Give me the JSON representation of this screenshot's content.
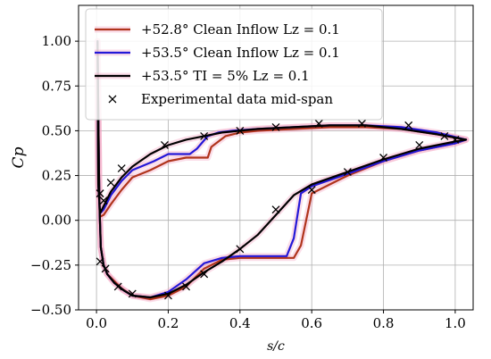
{
  "chart_data": {
    "type": "line",
    "xlabel": "s/c",
    "ylabel": "Cp",
    "xlim": [
      -0.05,
      1.05
    ],
    "ylim": [
      -0.5,
      1.2
    ],
    "xticks": [
      0.0,
      0.2,
      0.4,
      0.6,
      0.8,
      1.0
    ],
    "yticks": [
      -0.5,
      -0.25,
      0.0,
      0.25,
      0.5,
      0.75,
      1.0
    ],
    "xtick_labels": [
      "0.0",
      "0.2",
      "0.4",
      "0.6",
      "0.8",
      "1.0"
    ],
    "ytick_labels": [
      "−0.50",
      "−0.25",
      "0.00",
      "0.25",
      "0.50",
      "0.75",
      "1.00"
    ],
    "grid": true,
    "legend_position": "upper-left",
    "series": [
      {
        "name": "+52.8° Clean Inflow Lz = 0.1",
        "color": "#b0341c",
        "halo": "#f4a0c0",
        "points": [
          [
            1.03,
            0.45
          ],
          [
            0.95,
            0.48
          ],
          [
            0.85,
            0.51
          ],
          [
            0.75,
            0.52
          ],
          [
            0.65,
            0.52
          ],
          [
            0.55,
            0.51
          ],
          [
            0.45,
            0.5
          ],
          [
            0.4,
            0.49
          ],
          [
            0.36,
            0.47
          ],
          [
            0.32,
            0.41
          ],
          [
            0.31,
            0.35
          ],
          [
            0.29,
            0.35
          ],
          [
            0.25,
            0.35
          ],
          [
            0.2,
            0.33
          ],
          [
            0.15,
            0.28
          ],
          [
            0.1,
            0.24
          ],
          [
            0.07,
            0.17
          ],
          [
            0.04,
            0.09
          ],
          [
            0.02,
            0.03
          ],
          [
            0.01,
            0.02
          ],
          [
            0.005,
            0.2
          ],
          [
            0.003,
            1.0
          ],
          [
            0.005,
            0.6
          ],
          [
            0.008,
            0.1
          ],
          [
            0.012,
            -0.15
          ],
          [
            0.02,
            -0.25
          ],
          [
            0.03,
            -0.3
          ],
          [
            0.045,
            -0.33
          ],
          [
            0.07,
            -0.38
          ],
          [
            0.1,
            -0.42
          ],
          [
            0.15,
            -0.44
          ],
          [
            0.2,
            -0.42
          ],
          [
            0.25,
            -0.37
          ],
          [
            0.3,
            -0.27
          ],
          [
            0.35,
            -0.22
          ],
          [
            0.4,
            -0.21
          ],
          [
            0.5,
            -0.21
          ],
          [
            0.55,
            -0.21
          ],
          [
            0.57,
            -0.14
          ],
          [
            0.6,
            0.15
          ],
          [
            0.7,
            0.25
          ],
          [
            0.8,
            0.33
          ],
          [
            0.9,
            0.39
          ],
          [
            1.0,
            0.43
          ],
          [
            1.03,
            0.45
          ]
        ]
      },
      {
        "name": "+53.5° Clean Inflow Lz = 0.1",
        "color": "#2418d8",
        "halo": "#f4a0c0",
        "points": [
          [
            1.03,
            0.45
          ],
          [
            0.95,
            0.49
          ],
          [
            0.85,
            0.52
          ],
          [
            0.75,
            0.53
          ],
          [
            0.65,
            0.53
          ],
          [
            0.55,
            0.52
          ],
          [
            0.45,
            0.51
          ],
          [
            0.38,
            0.5
          ],
          [
            0.34,
            0.49
          ],
          [
            0.31,
            0.47
          ],
          [
            0.28,
            0.4
          ],
          [
            0.26,
            0.37
          ],
          [
            0.22,
            0.37
          ],
          [
            0.2,
            0.37
          ],
          [
            0.16,
            0.33
          ],
          [
            0.1,
            0.28
          ],
          [
            0.07,
            0.22
          ],
          [
            0.04,
            0.14
          ],
          [
            0.02,
            0.06
          ],
          [
            0.01,
            0.04
          ],
          [
            0.005,
            0.2
          ],
          [
            0.003,
            1.0
          ],
          [
            0.005,
            0.6
          ],
          [
            0.008,
            0.1
          ],
          [
            0.012,
            -0.15
          ],
          [
            0.02,
            -0.25
          ],
          [
            0.03,
            -0.3
          ],
          [
            0.05,
            -0.35
          ],
          [
            0.075,
            -0.39
          ],
          [
            0.1,
            -0.42
          ],
          [
            0.15,
            -0.43
          ],
          [
            0.2,
            -0.4
          ],
          [
            0.25,
            -0.33
          ],
          [
            0.3,
            -0.24
          ],
          [
            0.35,
            -0.21
          ],
          [
            0.4,
            -0.2
          ],
          [
            0.5,
            -0.2
          ],
          [
            0.53,
            -0.2
          ],
          [
            0.55,
            -0.1
          ],
          [
            0.57,
            0.15
          ],
          [
            0.6,
            0.19
          ],
          [
            0.7,
            0.26
          ],
          [
            0.8,
            0.33
          ],
          [
            0.9,
            0.39
          ],
          [
            1.0,
            0.43
          ],
          [
            1.03,
            0.45
          ]
        ]
      },
      {
        "name": "+53.5° TI = 5% Lz = 0.1",
        "color": "#000000",
        "halo": "#f4a0c0",
        "points": [
          [
            1.03,
            0.45
          ],
          [
            0.95,
            0.48
          ],
          [
            0.85,
            0.51
          ],
          [
            0.75,
            0.53
          ],
          [
            0.65,
            0.53
          ],
          [
            0.55,
            0.52
          ],
          [
            0.45,
            0.51
          ],
          [
            0.4,
            0.5
          ],
          [
            0.35,
            0.49
          ],
          [
            0.3,
            0.47
          ],
          [
            0.25,
            0.45
          ],
          [
            0.2,
            0.42
          ],
          [
            0.15,
            0.37
          ],
          [
            0.1,
            0.3
          ],
          [
            0.07,
            0.24
          ],
          [
            0.04,
            0.16
          ],
          [
            0.02,
            0.08
          ],
          [
            0.01,
            0.04
          ],
          [
            0.005,
            0.2
          ],
          [
            0.003,
            1.0
          ],
          [
            0.005,
            0.6
          ],
          [
            0.008,
            0.1
          ],
          [
            0.012,
            -0.15
          ],
          [
            0.02,
            -0.25
          ],
          [
            0.03,
            -0.3
          ],
          [
            0.05,
            -0.35
          ],
          [
            0.075,
            -0.39
          ],
          [
            0.1,
            -0.42
          ],
          [
            0.15,
            -0.43
          ],
          [
            0.2,
            -0.41
          ],
          [
            0.25,
            -0.36
          ],
          [
            0.3,
            -0.29
          ],
          [
            0.35,
            -0.23
          ],
          [
            0.4,
            -0.16
          ],
          [
            0.45,
            -0.08
          ],
          [
            0.5,
            0.03
          ],
          [
            0.55,
            0.14
          ],
          [
            0.6,
            0.2
          ],
          [
            0.7,
            0.27
          ],
          [
            0.8,
            0.34
          ],
          [
            0.9,
            0.4
          ],
          [
            1.0,
            0.44
          ],
          [
            1.03,
            0.45
          ]
        ]
      }
    ],
    "scatter": {
      "name": "Experimental data mid-span",
      "marker": "x",
      "color": "#000000",
      "points": [
        [
          0.01,
          0.15
        ],
        [
          0.02,
          0.11
        ],
        [
          0.04,
          0.21
        ],
        [
          0.07,
          0.29
        ],
        [
          0.19,
          0.42
        ],
        [
          0.3,
          0.47
        ],
        [
          0.4,
          0.5
        ],
        [
          0.5,
          0.52
        ],
        [
          0.62,
          0.54
        ],
        [
          0.74,
          0.54
        ],
        [
          0.87,
          0.53
        ],
        [
          0.97,
          0.47
        ],
        [
          0.01,
          -0.23
        ],
        [
          0.025,
          -0.27
        ],
        [
          0.06,
          -0.37
        ],
        [
          0.1,
          -0.41
        ],
        [
          0.2,
          -0.42
        ],
        [
          0.25,
          -0.37
        ],
        [
          0.3,
          -0.3
        ],
        [
          0.4,
          -0.16
        ],
        [
          0.5,
          0.06
        ],
        [
          0.6,
          0.17
        ],
        [
          0.7,
          0.27
        ],
        [
          0.8,
          0.35
        ],
        [
          0.9,
          0.42
        ],
        [
          1.0,
          0.45
        ]
      ]
    }
  }
}
